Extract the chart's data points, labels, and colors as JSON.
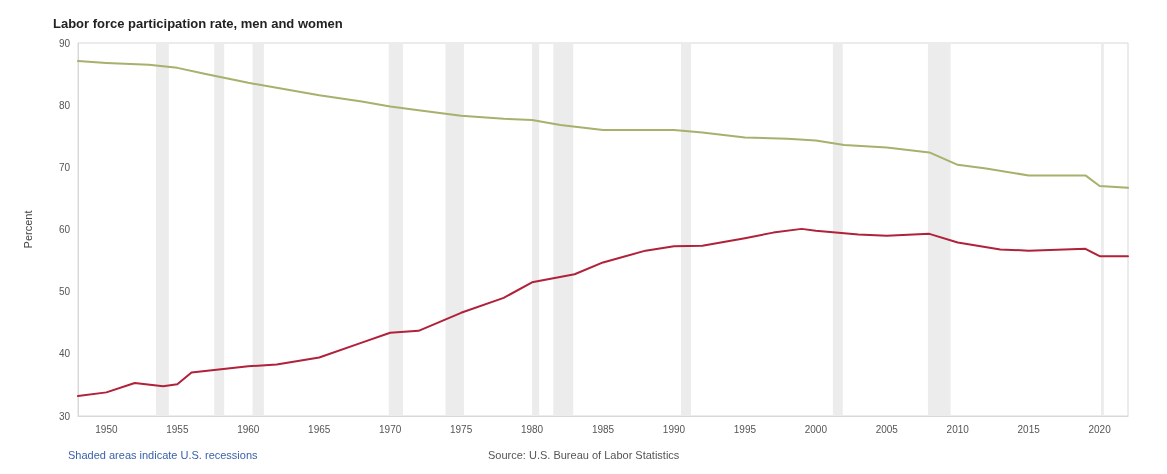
{
  "chart_data": {
    "type": "line",
    "title": "Labor force participation rate, men and women",
    "ylabel": "Percent",
    "annotations": [
      "Shaded areas indicate U.S. recessions",
      "Source: U.S. Bureau of Labor Statistics"
    ],
    "xlim": [
      1948,
      2022
    ],
    "xticks": [
      1950,
      1955,
      1960,
      1965,
      1970,
      1975,
      1980,
      1985,
      1990,
      1995,
      2000,
      2005,
      2010,
      2015,
      2020
    ],
    "ylim": [
      30,
      90
    ],
    "yticks": [
      30,
      40,
      50,
      60,
      70,
      80,
      90
    ],
    "grid": false,
    "marker": "none",
    "line_style": "solid",
    "bands": [
      {
        "axis": "x",
        "from": 1953.5,
        "to": 1954.4,
        "color": "#ececec"
      },
      {
        "axis": "x",
        "from": 1957.6,
        "to": 1958.3,
        "color": "#ececec"
      },
      {
        "axis": "x",
        "from": 1960.3,
        "to": 1961.1,
        "color": "#ececec"
      },
      {
        "axis": "x",
        "from": 1969.9,
        "to": 1970.9,
        "color": "#ececec"
      },
      {
        "axis": "x",
        "from": 1973.9,
        "to": 1975.2,
        "color": "#ececec"
      },
      {
        "axis": "x",
        "from": 1980.0,
        "to": 1980.5,
        "color": "#ececec"
      },
      {
        "axis": "x",
        "from": 1981.5,
        "to": 1982.9,
        "color": "#ececec"
      },
      {
        "axis": "x",
        "from": 1990.5,
        "to": 1991.2,
        "color": "#ececec"
      },
      {
        "axis": "x",
        "from": 2001.2,
        "to": 2001.9,
        "color": "#ececec"
      },
      {
        "axis": "x",
        "from": 2007.9,
        "to": 2009.5,
        "color": "#ececec"
      },
      {
        "axis": "x",
        "from": 2020.1,
        "to": 2020.3,
        "color": "#ececec"
      }
    ],
    "series": [
      {
        "color": "#a8b06c",
        "x": [
          1948,
          1950,
          1953,
          1955,
          1957,
          1960,
          1962,
          1965,
          1968,
          1970,
          1972,
          1975,
          1978,
          1980,
          1982,
          1985,
          1988,
          1990,
          1992,
          1995,
          1998,
          2000,
          2002,
          2005,
          2008,
          2010,
          2012,
          2015,
          2017,
          2019,
          2020,
          2022
        ],
        "values": [
          87.1,
          86.8,
          86.5,
          86.0,
          85.0,
          83.6,
          82.8,
          81.6,
          80.6,
          79.8,
          79.2,
          78.3,
          77.8,
          77.6,
          76.8,
          76.0,
          76.0,
          76.0,
          75.6,
          74.8,
          74.6,
          74.3,
          73.6,
          73.2,
          72.4,
          70.4,
          69.8,
          68.7,
          68.7,
          68.7,
          67.0,
          66.7
        ]
      },
      {
        "color": "#b0213a",
        "x": [
          1948,
          1950,
          1952,
          1954,
          1955,
          1956,
          1960,
          1962,
          1965,
          1968,
          1970,
          1972,
          1975,
          1978,
          1980,
          1983,
          1985,
          1988,
          1990,
          1992,
          1995,
          1997,
          1999,
          2000,
          2003,
          2005,
          2008,
          2010,
          2013,
          2015,
          2019,
          2020,
          2022
        ],
        "values": [
          33.2,
          33.8,
          35.3,
          34.8,
          35.1,
          37.0,
          38.0,
          38.3,
          39.4,
          41.8,
          43.4,
          43.7,
          46.6,
          49.0,
          51.5,
          52.8,
          54.7,
          56.6,
          57.3,
          57.4,
          58.6,
          59.5,
          60.1,
          59.8,
          59.2,
          59.0,
          59.3,
          57.9,
          56.8,
          56.6,
          56.9,
          55.7,
          55.7
        ]
      }
    ]
  }
}
